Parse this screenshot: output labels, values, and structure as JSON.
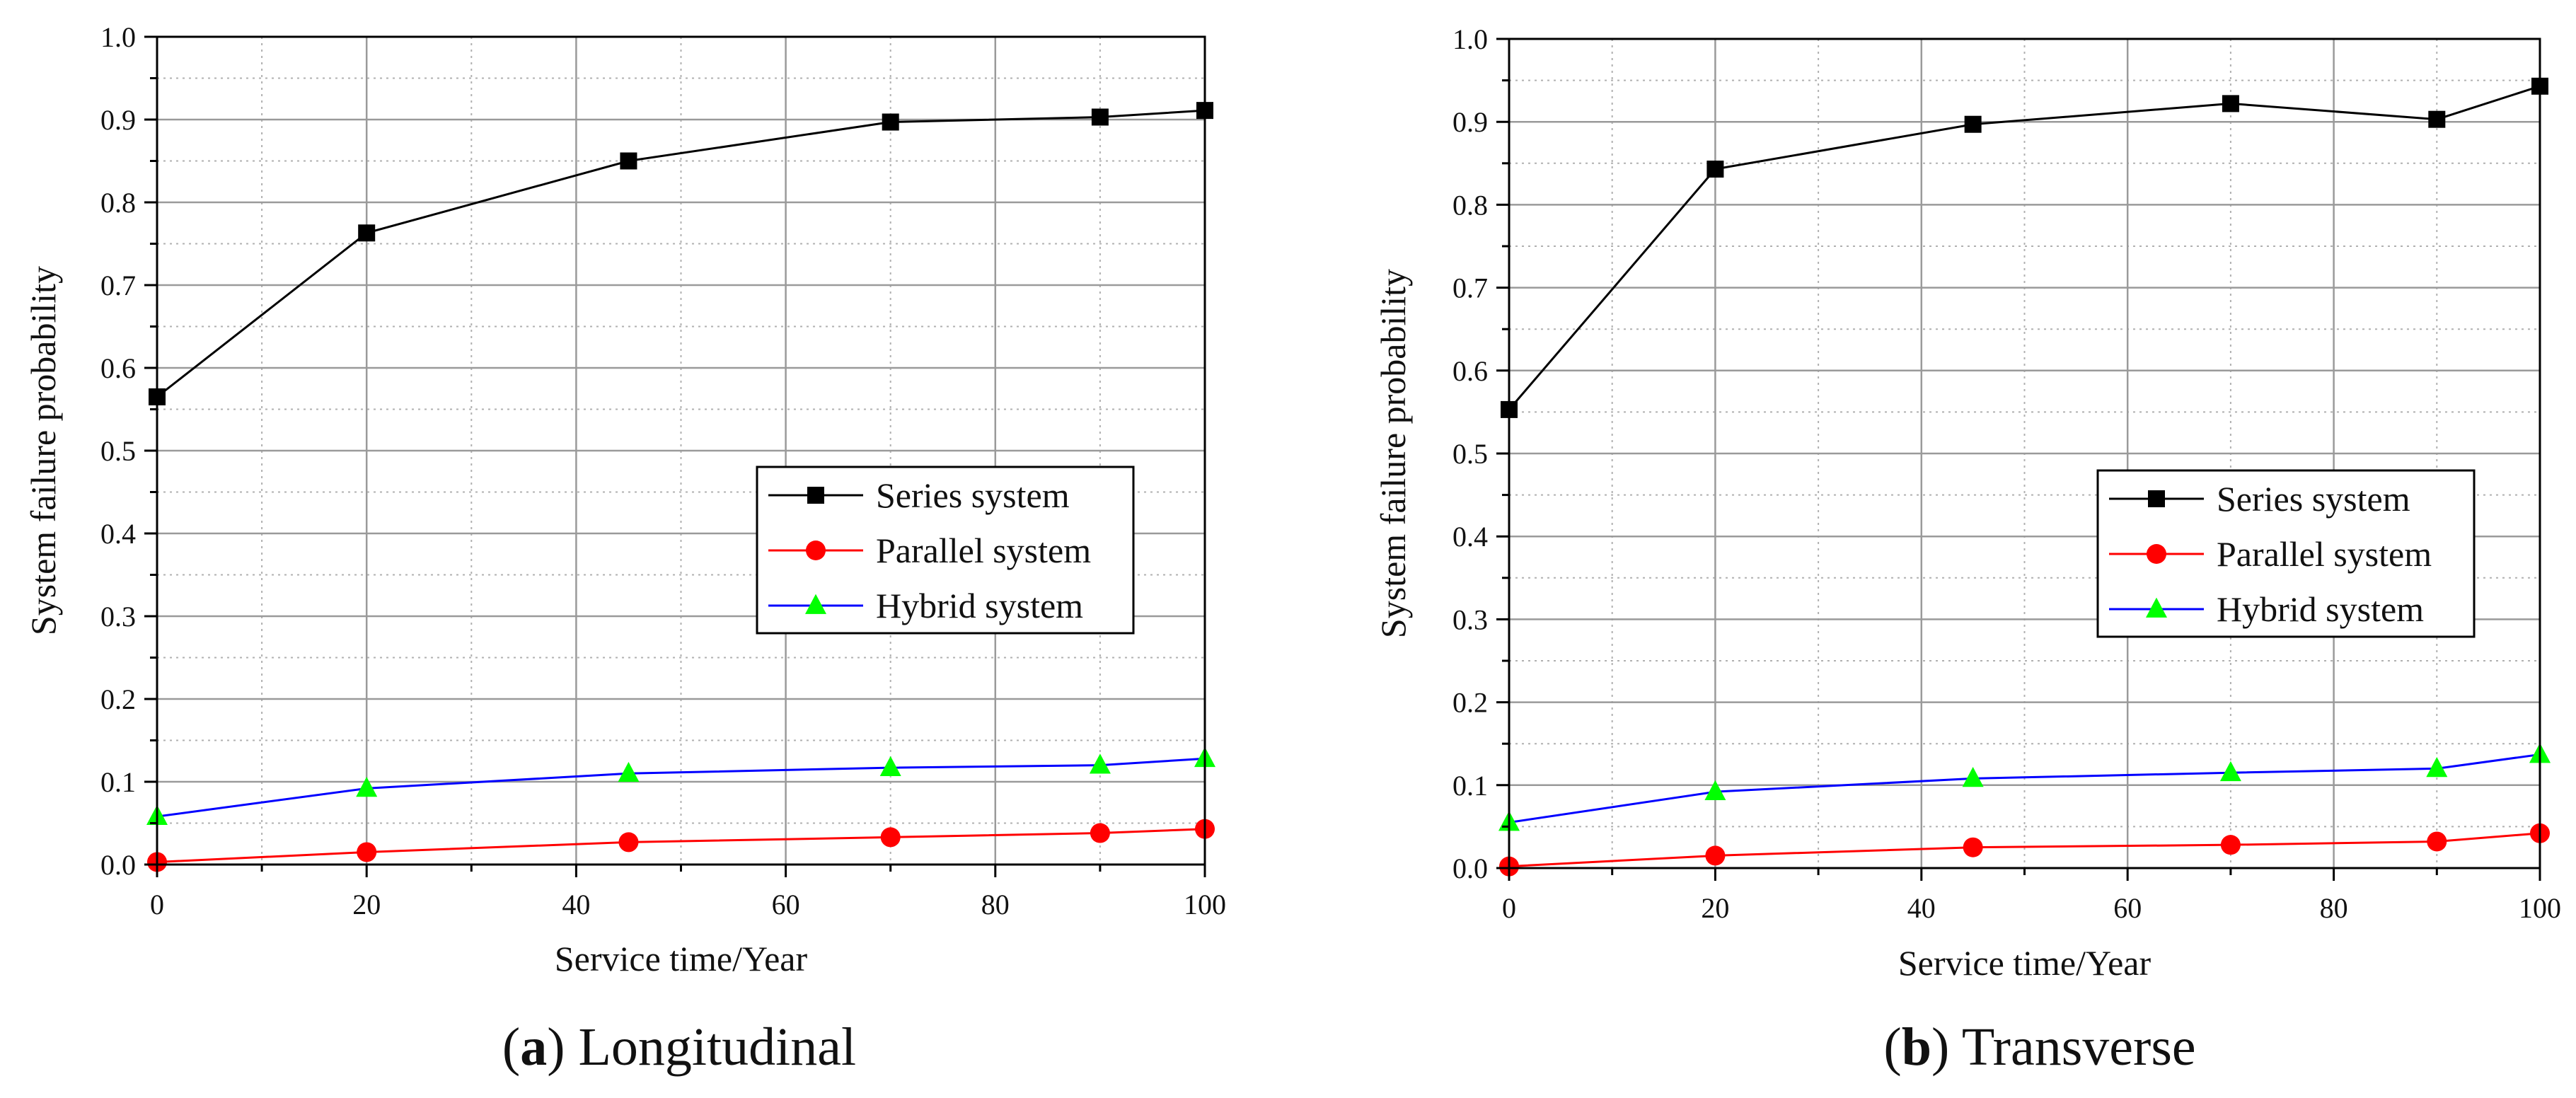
{
  "chart_data": [
    {
      "type": "line",
      "x": [
        0,
        20,
        45,
        70,
        90,
        100
      ],
      "series": [
        {
          "name": "Series system",
          "color": "#000000",
          "marker_color": "#000000",
          "marker": "square",
          "values": [
            0.565,
            0.763,
            0.85,
            0.897,
            0.903,
            0.911
          ]
        },
        {
          "name": "Parallel system",
          "color": "#ff0000",
          "marker_color": "#ff0000",
          "marker": "circle",
          "values": [
            0.003,
            0.015,
            0.027,
            0.033,
            0.038,
            0.043
          ]
        },
        {
          "name": "Hybrid system",
          "color": "#0000ff",
          "marker_color": "#00ff00",
          "marker": "triangle",
          "values": [
            0.058,
            0.092,
            0.11,
            0.117,
            0.12,
            0.128
          ]
        }
      ],
      "xlabel": "Service time/Year",
      "ylabel": "System failure probability",
      "xlim": [
        0,
        100
      ],
      "ylim": [
        0,
        1.0
      ],
      "xticks": [
        "0",
        "20",
        "40",
        "60",
        "80",
        "100"
      ],
      "yticks": [
        "0.0",
        "0.1",
        "0.2",
        "0.3",
        "0.4",
        "0.5",
        "0.6",
        "0.7",
        "0.8",
        "0.9",
        "1.0"
      ],
      "grid": true,
      "legend": "center-right",
      "caption_label": "a",
      "caption_text": "Longitudinal"
    },
    {
      "type": "line",
      "x": [
        0,
        20,
        45,
        70,
        90,
        100
      ],
      "series": [
        {
          "name": "Series system",
          "color": "#000000",
          "marker_color": "#000000",
          "marker": "square",
          "values": [
            0.553,
            0.843,
            0.897,
            0.922,
            0.903,
            0.943
          ]
        },
        {
          "name": "Parallel system",
          "color": "#ff0000",
          "marker_color": "#ff0000",
          "marker": "circle",
          "values": [
            0.002,
            0.015,
            0.025,
            0.028,
            0.032,
            0.042
          ]
        },
        {
          "name": "Hybrid system",
          "color": "#0000ff",
          "marker_color": "#00ff00",
          "marker": "triangle",
          "values": [
            0.055,
            0.092,
            0.108,
            0.115,
            0.12,
            0.137
          ]
        }
      ],
      "xlabel": "Service time/Year",
      "ylabel": "System failure probability",
      "xlim": [
        0,
        100
      ],
      "ylim": [
        0,
        1.0
      ],
      "xticks": [
        "0",
        "20",
        "40",
        "60",
        "80",
        "100"
      ],
      "yticks": [
        "0.0",
        "0.1",
        "0.2",
        "0.3",
        "0.4",
        "0.5",
        "0.6",
        "0.7",
        "0.8",
        "0.9",
        "1.0"
      ],
      "grid": true,
      "legend": "center-right",
      "caption_label": "b",
      "caption_text": "Transverse"
    }
  ]
}
